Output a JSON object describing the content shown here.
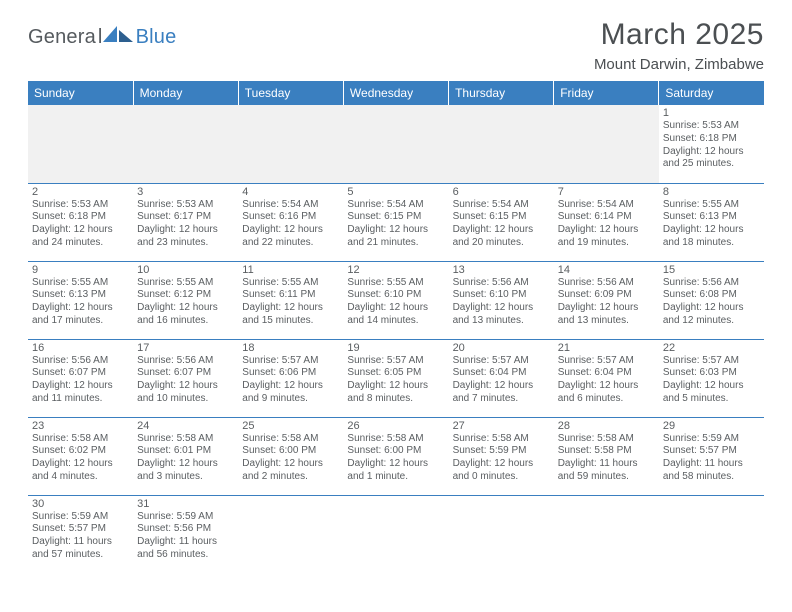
{
  "logo": {
    "general": "Genera",
    "l": "l",
    "blue": "Blue"
  },
  "title": "March 2025",
  "subtitle": "Mount Darwin, Zimbabwe",
  "colors": {
    "header_bg": "#3a7fc0",
    "header_text": "#ffffff",
    "border": "#3a7fc0",
    "text": "#5a5e61",
    "empty_bg": "#f1f1f1"
  },
  "day_headers": [
    "Sunday",
    "Monday",
    "Tuesday",
    "Wednesday",
    "Thursday",
    "Friday",
    "Saturday"
  ],
  "weeks": [
    [
      null,
      null,
      null,
      null,
      null,
      null,
      {
        "n": "1",
        "sr": "5:53 AM",
        "ss": "6:18 PM",
        "dl": "12 hours and 25 minutes."
      }
    ],
    [
      {
        "n": "2",
        "sr": "5:53 AM",
        "ss": "6:18 PM",
        "dl": "12 hours and 24 minutes."
      },
      {
        "n": "3",
        "sr": "5:53 AM",
        "ss": "6:17 PM",
        "dl": "12 hours and 23 minutes."
      },
      {
        "n": "4",
        "sr": "5:54 AM",
        "ss": "6:16 PM",
        "dl": "12 hours and 22 minutes."
      },
      {
        "n": "5",
        "sr": "5:54 AM",
        "ss": "6:15 PM",
        "dl": "12 hours and 21 minutes."
      },
      {
        "n": "6",
        "sr": "5:54 AM",
        "ss": "6:15 PM",
        "dl": "12 hours and 20 minutes."
      },
      {
        "n": "7",
        "sr": "5:54 AM",
        "ss": "6:14 PM",
        "dl": "12 hours and 19 minutes."
      },
      {
        "n": "8",
        "sr": "5:55 AM",
        "ss": "6:13 PM",
        "dl": "12 hours and 18 minutes."
      }
    ],
    [
      {
        "n": "9",
        "sr": "5:55 AM",
        "ss": "6:13 PM",
        "dl": "12 hours and 17 minutes."
      },
      {
        "n": "10",
        "sr": "5:55 AM",
        "ss": "6:12 PM",
        "dl": "12 hours and 16 minutes."
      },
      {
        "n": "11",
        "sr": "5:55 AM",
        "ss": "6:11 PM",
        "dl": "12 hours and 15 minutes."
      },
      {
        "n": "12",
        "sr": "5:55 AM",
        "ss": "6:10 PM",
        "dl": "12 hours and 14 minutes."
      },
      {
        "n": "13",
        "sr": "5:56 AM",
        "ss": "6:10 PM",
        "dl": "12 hours and 13 minutes."
      },
      {
        "n": "14",
        "sr": "5:56 AM",
        "ss": "6:09 PM",
        "dl": "12 hours and 13 minutes."
      },
      {
        "n": "15",
        "sr": "5:56 AM",
        "ss": "6:08 PM",
        "dl": "12 hours and 12 minutes."
      }
    ],
    [
      {
        "n": "16",
        "sr": "5:56 AM",
        "ss": "6:07 PM",
        "dl": "12 hours and 11 minutes."
      },
      {
        "n": "17",
        "sr": "5:56 AM",
        "ss": "6:07 PM",
        "dl": "12 hours and 10 minutes."
      },
      {
        "n": "18",
        "sr": "5:57 AM",
        "ss": "6:06 PM",
        "dl": "12 hours and 9 minutes."
      },
      {
        "n": "19",
        "sr": "5:57 AM",
        "ss": "6:05 PM",
        "dl": "12 hours and 8 minutes."
      },
      {
        "n": "20",
        "sr": "5:57 AM",
        "ss": "6:04 PM",
        "dl": "12 hours and 7 minutes."
      },
      {
        "n": "21",
        "sr": "5:57 AM",
        "ss": "6:04 PM",
        "dl": "12 hours and 6 minutes."
      },
      {
        "n": "22",
        "sr": "5:57 AM",
        "ss": "6:03 PM",
        "dl": "12 hours and 5 minutes."
      }
    ],
    [
      {
        "n": "23",
        "sr": "5:58 AM",
        "ss": "6:02 PM",
        "dl": "12 hours and 4 minutes."
      },
      {
        "n": "24",
        "sr": "5:58 AM",
        "ss": "6:01 PM",
        "dl": "12 hours and 3 minutes."
      },
      {
        "n": "25",
        "sr": "5:58 AM",
        "ss": "6:00 PM",
        "dl": "12 hours and 2 minutes."
      },
      {
        "n": "26",
        "sr": "5:58 AM",
        "ss": "6:00 PM",
        "dl": "12 hours and 1 minute."
      },
      {
        "n": "27",
        "sr": "5:58 AM",
        "ss": "5:59 PM",
        "dl": "12 hours and 0 minutes."
      },
      {
        "n": "28",
        "sr": "5:58 AM",
        "ss": "5:58 PM",
        "dl": "11 hours and 59 minutes."
      },
      {
        "n": "29",
        "sr": "5:59 AM",
        "ss": "5:57 PM",
        "dl": "11 hours and 58 minutes."
      }
    ],
    [
      {
        "n": "30",
        "sr": "5:59 AM",
        "ss": "5:57 PM",
        "dl": "11 hours and 57 minutes."
      },
      {
        "n": "31",
        "sr": "5:59 AM",
        "ss": "5:56 PM",
        "dl": "11 hours and 56 minutes."
      },
      null,
      null,
      null,
      null,
      null
    ]
  ],
  "labels": {
    "sunrise": "Sunrise:",
    "sunset": "Sunset:",
    "daylight": "Daylight:"
  }
}
